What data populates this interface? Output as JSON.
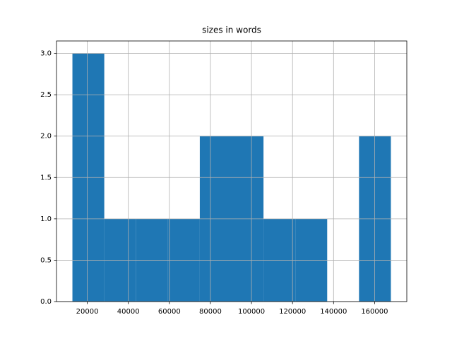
{
  "chart_data": {
    "type": "histogram",
    "title": "sizes in words",
    "bins": [
      12760,
      28277,
      43794,
      59311,
      74828,
      90345,
      105862,
      121379,
      136896,
      152413,
      167930
    ],
    "values": [
      3,
      1,
      1,
      1,
      2,
      2,
      1,
      1,
      0,
      2
    ],
    "color": "#1f77b4",
    "xlim": [
      5002,
      175688
    ],
    "xticks": [
      20000,
      40000,
      60000,
      80000,
      100000,
      120000,
      140000,
      160000
    ],
    "ylim": [
      0,
      3.15
    ],
    "yticks": [
      {
        "value": 0,
        "label": "0.0"
      },
      {
        "value": 0.5,
        "label": "0.5"
      },
      {
        "value": 1,
        "label": "1.0"
      },
      {
        "value": 1.5,
        "label": "1.5"
      },
      {
        "value": 2,
        "label": "2.0"
      },
      {
        "value": 2.5,
        "label": "2.5"
      },
      {
        "value": 3,
        "label": "3.0"
      }
    ],
    "grid": true
  }
}
